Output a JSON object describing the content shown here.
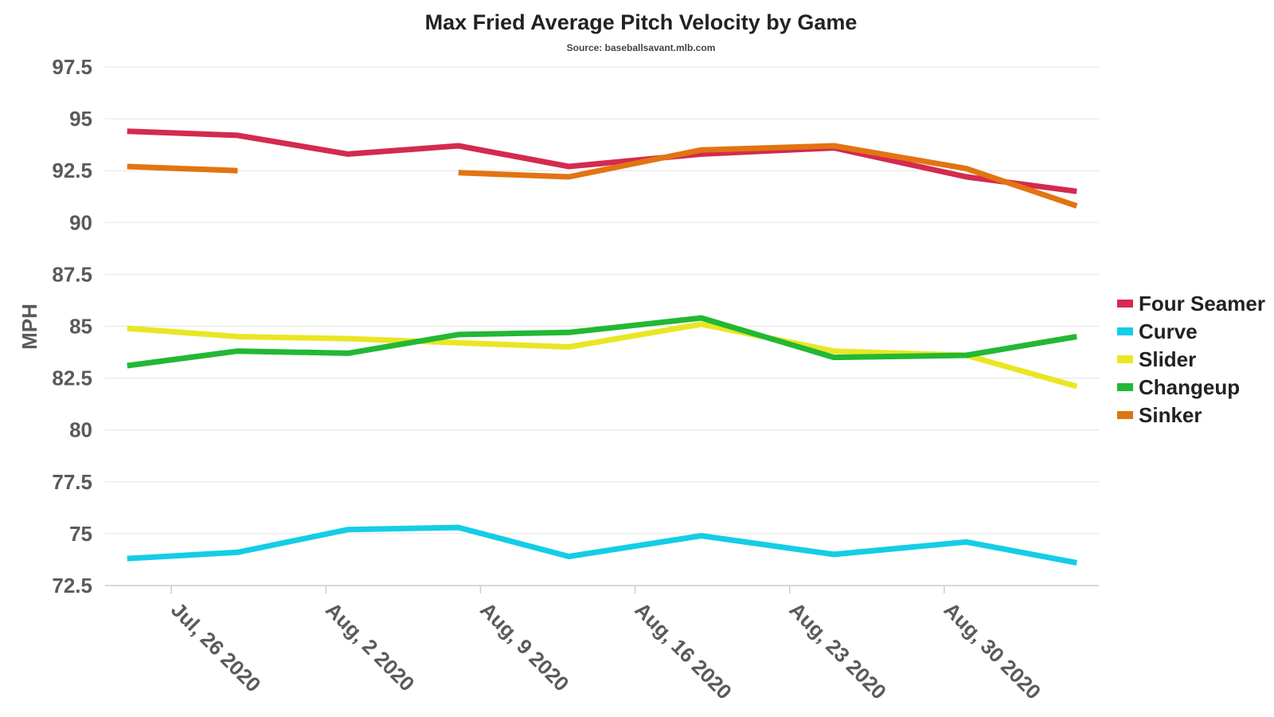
{
  "chart_data": {
    "type": "line",
    "title": "Max Fried Average Pitch Velocity by Game",
    "subtitle": "Source: baseballsavant.mlb.com",
    "ylabel": "MPH",
    "xlabel": "",
    "ylim": [
      72.5,
      97.5
    ],
    "yticks": [
      "72.5",
      "75",
      "77.5",
      "80",
      "82.5",
      "85",
      "87.5",
      "90",
      "92.5",
      "95",
      "97.5"
    ],
    "xlim": [
      "2020-07-23",
      "2020-09-06"
    ],
    "xticks": [
      {
        "label": "Jul, 26 2020",
        "date": "2020-07-26"
      },
      {
        "label": "Aug, 2 2020",
        "date": "2020-08-02"
      },
      {
        "label": "Aug, 9 2020",
        "date": "2020-08-09"
      },
      {
        "label": "Aug, 16 2020",
        "date": "2020-08-16"
      },
      {
        "label": "Aug, 23 2020",
        "date": "2020-08-23"
      },
      {
        "label": "Aug, 30 2020",
        "date": "2020-08-30"
      }
    ],
    "games": [
      "2020-07-24",
      "2020-07-29",
      "2020-08-03",
      "2020-08-08",
      "2020-08-13",
      "2020-08-19",
      "2020-08-25",
      "2020-08-31",
      "2020-09-05"
    ],
    "legend_position": "right",
    "grid": true,
    "series": [
      {
        "name": "Four Seamer",
        "color": "#d42a4f",
        "values": [
          94.4,
          94.2,
          93.3,
          93.7,
          92.7,
          93.3,
          93.6,
          92.2,
          91.5
        ]
      },
      {
        "name": "Curve",
        "color": "#14cde6",
        "values": [
          73.8,
          74.1,
          75.2,
          75.3,
          73.9,
          74.9,
          74.0,
          74.6,
          73.6
        ]
      },
      {
        "name": "Slider",
        "color": "#eae624",
        "values": [
          84.9,
          84.5,
          84.4,
          84.2,
          84.0,
          85.1,
          83.8,
          83.6,
          82.1
        ]
      },
      {
        "name": "Changeup",
        "color": "#22b834",
        "values": [
          83.1,
          83.8,
          83.7,
          84.6,
          84.7,
          85.4,
          83.5,
          83.6,
          84.5
        ]
      },
      {
        "name": "Sinker",
        "color": "#e27412",
        "values": [
          92.7,
          92.5,
          null,
          92.4,
          92.2,
          93.5,
          93.7,
          92.6,
          90.8
        ]
      }
    ]
  }
}
